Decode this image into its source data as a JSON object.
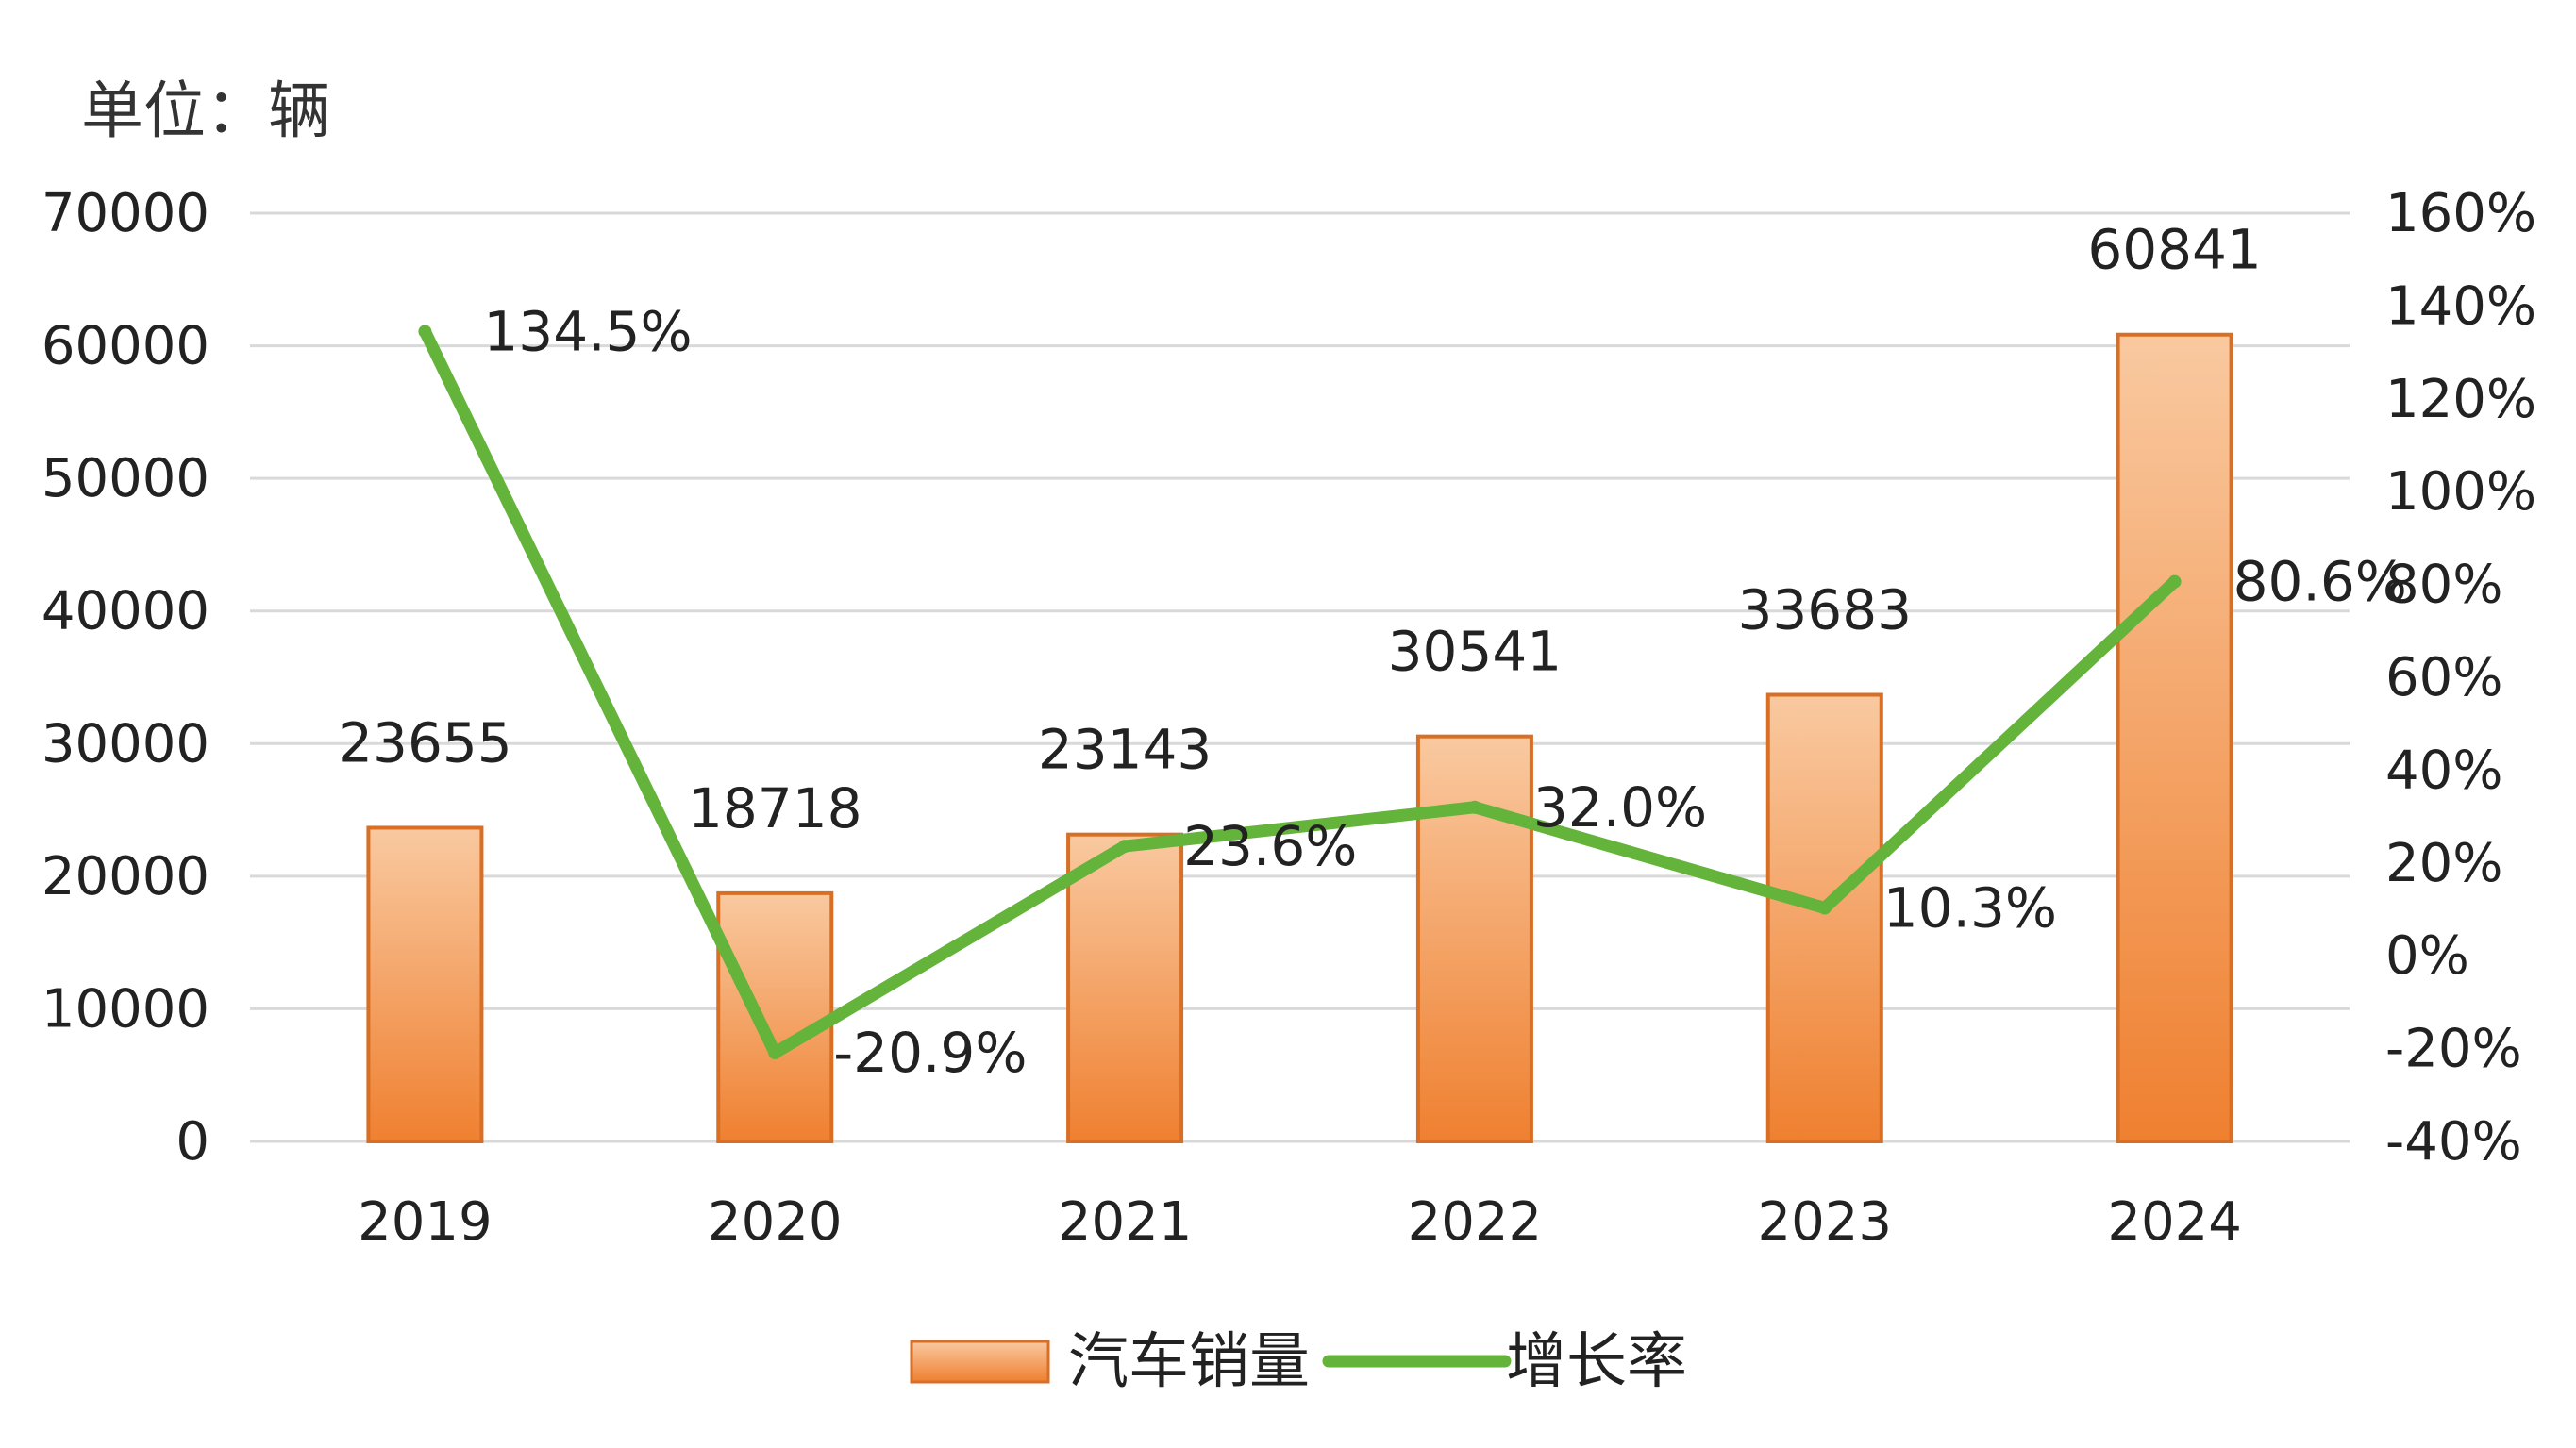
{
  "chart_data": {
    "type": "bar+line",
    "unit_title": "单位：辆",
    "categories": [
      "2019",
      "2020",
      "2021",
      "2022",
      "2023",
      "2024"
    ],
    "series": [
      {
        "name": "汽车销量",
        "kind": "bar",
        "axis": "left",
        "color": "#f08a3c",
        "values": [
          23655,
          18718,
          23143,
          30541,
          33683,
          60841
        ],
        "labels": [
          "23655",
          "18718",
          "23143",
          "30541",
          "33683",
          "60841"
        ]
      },
      {
        "name": "增长率",
        "kind": "line",
        "axis": "right",
        "color": "#64b33b",
        "values": [
          134.5,
          -20.9,
          23.6,
          32.0,
          10.3,
          80.6
        ],
        "labels": [
          "134.5%",
          "-20.9%",
          "23.6%",
          "32.0%",
          "10.3%",
          "80.6%"
        ]
      }
    ],
    "y_left": {
      "min": 0,
      "max": 70000,
      "ticks": [
        "0",
        "10000",
        "20000",
        "30000",
        "40000",
        "50000",
        "60000",
        "70000"
      ]
    },
    "y_right": {
      "min": -40,
      "max": 160,
      "ticks": [
        "-40%",
        "-20%",
        "0%",
        "20%",
        "40%",
        "60%",
        "80%",
        "100%",
        "120%",
        "140%",
        "160%"
      ]
    },
    "grid": true,
    "legend_position": "bottom"
  }
}
